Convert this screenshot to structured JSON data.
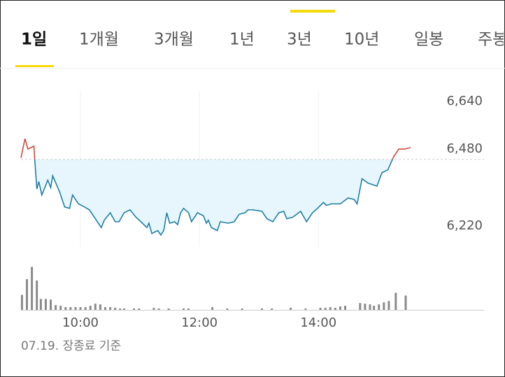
{
  "tabs": [
    "1일",
    "1개월",
    "3개월",
    "1년",
    "3년",
    "10년",
    "일봉",
    "주봉"
  ],
  "active_tab": 0,
  "footnote": "07.19. 장종료 기준",
  "chart_data": {
    "type": "line",
    "x": [
      540,
      544,
      547,
      553,
      554,
      556,
      558,
      561,
      567,
      570,
      572,
      579,
      584,
      589,
      592,
      598,
      604,
      609,
      615,
      621,
      624,
      630,
      635,
      639,
      644,
      650,
      656,
      661,
      667,
      669,
      672,
      678,
      681,
      684,
      687,
      690,
      695,
      698,
      701,
      704,
      709,
      712,
      718,
      724,
      727,
      729,
      732,
      738,
      741,
      749,
      755,
      760,
      766,
      769,
      774,
      783,
      788,
      794,
      800,
      805,
      808,
      814,
      822,
      828,
      834,
      839,
      845,
      848,
      853,
      862,
      870,
      876,
      879,
      884,
      890,
      899,
      904,
      910,
      916,
      921,
      927,
      933
    ],
    "values": [
      6485,
      6550,
      6515,
      6525,
      6475,
      6380,
      6405,
      6360,
      6410,
      6385,
      6425,
      6370,
      6320,
      6315,
      6360,
      6330,
      6320,
      6310,
      6280,
      6250,
      6275,
      6300,
      6270,
      6270,
      6300,
      6310,
      6285,
      6270,
      6250,
      6265,
      6230,
      6240,
      6225,
      6240,
      6300,
      6265,
      6270,
      6260,
      6300,
      6315,
      6300,
      6270,
      6300,
      6290,
      6265,
      6275,
      6250,
      6240,
      6270,
      6265,
      6270,
      6295,
      6300,
      6310,
      6310,
      6305,
      6280,
      6270,
      6300,
      6305,
      6280,
      6285,
      6305,
      6270,
      6300,
      6315,
      6335,
      6325,
      6330,
      6330,
      6350,
      6345,
      6330,
      6415,
      6400,
      6390,
      6435,
      6445,
      6490,
      6515,
      6515,
      6520
    ],
    "baseline": 6480,
    "colors": {
      "above": "#d24a3c",
      "below": "#1e7fa5",
      "fill": "#e6f6fc"
    },
    "xlim": [
      540,
      1007
    ],
    "xticks": [
      {
        "value": 600,
        "label": "10:00"
      },
      {
        "value": 720,
        "label": "12:00"
      },
      {
        "value": 840,
        "label": "14:00"
      }
    ],
    "ylim": [
      6185,
      6711
    ],
    "yticks": [
      {
        "value": 6640,
        "label": "6,640"
      },
      {
        "value": 6480,
        "label": "6,480"
      },
      {
        "value": 6220,
        "label": "6,220"
      }
    ],
    "grid": true,
    "volume": {
      "x": [
        541,
        546,
        551,
        556,
        560,
        565,
        570,
        575,
        580,
        585,
        590,
        595,
        600,
        605,
        610,
        615,
        620,
        625,
        630,
        635,
        640,
        644,
        654,
        659,
        674,
        679,
        689,
        704,
        709,
        733,
        748,
        763,
        783,
        793,
        812,
        827,
        842,
        847,
        852,
        857,
        862,
        867,
        882,
        887,
        892,
        896,
        901,
        906,
        911,
        918,
        928
      ],
      "values": [
        22,
        45,
        63,
        43,
        16,
        16,
        15,
        7,
        6,
        4,
        4,
        4,
        4,
        4,
        6,
        9,
        8,
        4,
        4,
        3,
        2,
        2,
        2,
        2,
        3,
        2,
        2,
        2,
        2,
        4,
        2,
        2,
        2,
        2,
        3,
        2,
        3,
        3,
        4,
        3,
        5,
        6,
        10,
        9,
        8,
        6,
        8,
        11,
        13,
        25,
        21
      ],
      "color": "#8a8a8a",
      "ylim": [
        0,
        80
      ]
    }
  }
}
